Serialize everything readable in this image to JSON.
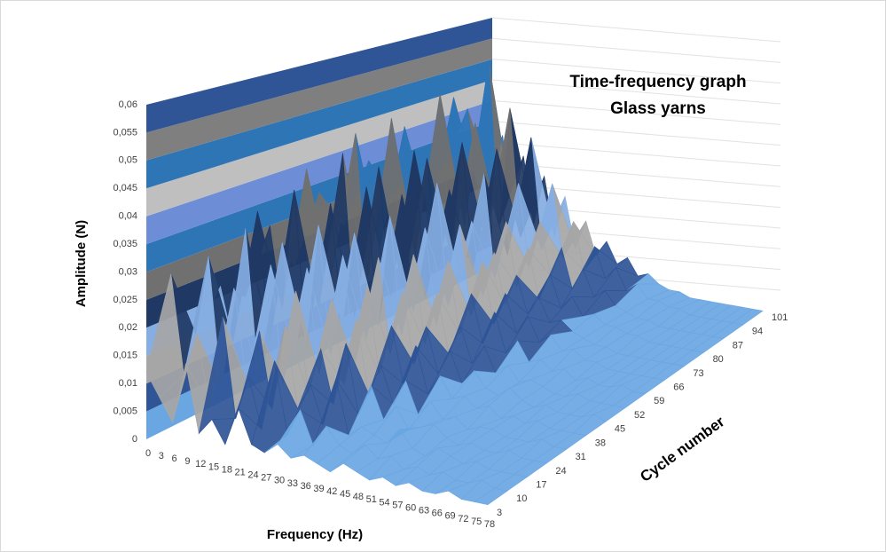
{
  "chart_data": {
    "type": "surface",
    "title": "Time-frequency graph",
    "subtitle": "Glass yarns",
    "x_label": "Frequency (Hz)",
    "y_label": "Amplitude (N)",
    "depth_label": "Cycle number",
    "categories": [
      "0",
      "3",
      "6",
      "9",
      "12",
      "15",
      "18",
      "21",
      "24",
      "27",
      "30",
      "33",
      "36",
      "39",
      "42",
      "45",
      "48",
      "51",
      "54",
      "57",
      "60",
      "63",
      "66",
      "69",
      "72",
      "75",
      "78"
    ],
    "ylim": [
      0,
      0.06
    ],
    "yticks": [
      0,
      {
        "value": 0.005,
        "label": "0,005"
      },
      {
        "value": 0.01,
        "label": "0,01"
      },
      {
        "value": 0.015,
        "label": "0,015"
      },
      {
        "value": 0.02,
        "label": "0,02"
      },
      {
        "value": 0.025,
        "label": "0,025"
      },
      {
        "value": 0.03,
        "label": "0,03"
      },
      {
        "value": 0.035,
        "label": "0,035"
      },
      {
        "value": 0.04,
        "label": "0,04"
      },
      {
        "value": 0.045,
        "label": "0,045"
      },
      {
        "value": 0.05,
        "label": "0,05"
      },
      {
        "value": 0.055,
        "label": "0,055"
      },
      {
        "value": 0.06,
        "label": "0,06"
      }
    ],
    "band_colors": [
      "#6aa6e2",
      "#2f5597",
      "#a6a6a6",
      "#86aee2",
      "#1f3864",
      "#707070",
      "#2e75b6",
      "#6d8ed6",
      "#bfbfbf",
      "#2e75b6",
      "#7f7f7f",
      "#2f5597"
    ],
    "series": [
      {
        "name": "3",
        "values": [
          0.012,
          0.008,
          0.004,
          0.015,
          0.003,
          0.006,
          0.002,
          0.009,
          0.003,
          0.002,
          0.004,
          0.002,
          0.003,
          0.002,
          0.001,
          0.003,
          0.002,
          0.001,
          0.002,
          0.001,
          0.002,
          0.001,
          0.001,
          0.002,
          0.001,
          0.001,
          0.001
        ]
      },
      {
        "name": "10",
        "values": [
          0.028,
          0.01,
          0.018,
          0.005,
          0.022,
          0.004,
          0.012,
          0.003,
          0.016,
          0.003,
          0.008,
          0.002,
          0.006,
          0.003,
          0.002,
          0.004,
          0.002,
          0.003,
          0.001,
          0.002,
          0.001,
          0.002,
          0.001,
          0.001,
          0.002,
          0.001,
          0.001
        ]
      },
      {
        "name": "17",
        "values": [
          0.015,
          0.03,
          0.006,
          0.025,
          0.008,
          0.018,
          0.004,
          0.02,
          0.005,
          0.01,
          0.003,
          0.012,
          0.002,
          0.004,
          0.003,
          0.002,
          0.005,
          0.002,
          0.001,
          0.003,
          0.002,
          0.001,
          0.002,
          0.001,
          0.001,
          0.001,
          0.001
        ]
      },
      {
        "name": "24",
        "values": [
          0.022,
          0.012,
          0.034,
          0.007,
          0.028,
          0.006,
          0.024,
          0.005,
          0.014,
          0.004,
          0.016,
          0.003,
          0.009,
          0.003,
          0.006,
          0.002,
          0.003,
          0.004,
          0.002,
          0.001,
          0.002,
          0.001,
          0.001,
          0.002,
          0.001,
          0.001,
          0.001
        ]
      },
      {
        "name": "31",
        "values": [
          0.018,
          0.035,
          0.01,
          0.03,
          0.009,
          0.026,
          0.006,
          0.021,
          0.005,
          0.018,
          0.004,
          0.01,
          0.003,
          0.008,
          0.002,
          0.005,
          0.002,
          0.003,
          0.001,
          0.002,
          0.002,
          0.001,
          0.001,
          0.001,
          0.002,
          0.001,
          0.001
        ]
      },
      {
        "name": "38",
        "values": [
          0.03,
          0.014,
          0.038,
          0.008,
          0.032,
          0.007,
          0.027,
          0.006,
          0.022,
          0.005,
          0.015,
          0.004,
          0.012,
          0.003,
          0.007,
          0.003,
          0.004,
          0.002,
          0.003,
          0.001,
          0.002,
          0.001,
          0.002,
          0.001,
          0.001,
          0.001,
          0.001
        ]
      },
      {
        "name": "45",
        "values": [
          0.02,
          0.04,
          0.012,
          0.034,
          0.01,
          0.029,
          0.008,
          0.025,
          0.006,
          0.019,
          0.005,
          0.013,
          0.004,
          0.009,
          0.003,
          0.006,
          0.003,
          0.002,
          0.004,
          0.002,
          0.001,
          0.002,
          0.001,
          0.001,
          0.001,
          0.002,
          0.001
        ]
      },
      {
        "name": "52",
        "values": [
          0.033,
          0.016,
          0.042,
          0.009,
          0.036,
          0.008,
          0.031,
          0.007,
          0.024,
          0.006,
          0.017,
          0.005,
          0.011,
          0.004,
          0.008,
          0.003,
          0.005,
          0.002,
          0.003,
          0.002,
          0.001,
          0.001,
          0.002,
          0.001,
          0.001,
          0.001,
          0.001
        ]
      },
      {
        "name": "59",
        "values": [
          0.024,
          0.044,
          0.013,
          0.038,
          0.011,
          0.033,
          0.009,
          0.027,
          0.007,
          0.021,
          0.006,
          0.015,
          0.005,
          0.012,
          0.004,
          0.007,
          0.003,
          0.004,
          0.002,
          0.003,
          0.001,
          0.002,
          0.001,
          0.001,
          0.002,
          0.001,
          0.001
        ]
      },
      {
        "name": "66",
        "values": [
          0.036,
          0.018,
          0.046,
          0.01,
          0.04,
          0.009,
          0.034,
          0.008,
          0.026,
          0.007,
          0.019,
          0.006,
          0.013,
          0.005,
          0.009,
          0.004,
          0.006,
          0.003,
          0.004,
          0.002,
          0.002,
          0.001,
          0.001,
          0.001,
          0.001,
          0.001,
          0.001
        ]
      },
      {
        "name": "73",
        "values": [
          0.026,
          0.042,
          0.015,
          0.036,
          0.012,
          0.03,
          0.01,
          0.024,
          0.008,
          0.018,
          0.007,
          0.014,
          0.006,
          0.01,
          0.005,
          0.006,
          0.004,
          0.003,
          0.002,
          0.002,
          0.001,
          0.001,
          0.001,
          0.001,
          0.001,
          0.001,
          0.001
        ]
      },
      {
        "name": "80",
        "values": [
          0.034,
          0.02,
          0.048,
          0.012,
          0.038,
          0.01,
          0.032,
          0.009,
          0.022,
          0.008,
          0.017,
          0.006,
          0.012,
          0.005,
          0.008,
          0.004,
          0.005,
          0.003,
          0.003,
          0.002,
          0.002,
          0.001,
          0.001,
          0.001,
          0.001,
          0.001,
          0.001
        ]
      },
      {
        "name": "87",
        "values": [
          0.028,
          0.045,
          0.016,
          0.04,
          0.013,
          0.035,
          0.011,
          0.028,
          0.009,
          0.02,
          0.008,
          0.015,
          0.006,
          0.011,
          0.005,
          0.007,
          0.004,
          0.003,
          0.002,
          0.002,
          0.001,
          0.001,
          0.001,
          0.001,
          0.001,
          0.001,
          0.001
        ]
      },
      {
        "name": "94",
        "values": [
          0.04,
          0.022,
          0.052,
          0.014,
          0.042,
          0.012,
          0.036,
          0.01,
          0.026,
          0.009,
          0.018,
          0.007,
          0.013,
          0.006,
          0.009,
          0.004,
          0.006,
          0.003,
          0.003,
          0.002,
          0.002,
          0.001,
          0.001,
          0.001,
          0.001,
          0.001,
          0.001
        ]
      },
      {
        "name": "101",
        "values": [
          0.02,
          0.032,
          0.014,
          0.028,
          0.012,
          0.024,
          0.01,
          0.02,
          0.008,
          0.015,
          0.007,
          0.011,
          0.006,
          0.008,
          0.004,
          0.005,
          0.003,
          0.002,
          0.002,
          0.001,
          0.001,
          0.001,
          0.001,
          0.001,
          0.001,
          0.001,
          0.001
        ]
      }
    ]
  }
}
